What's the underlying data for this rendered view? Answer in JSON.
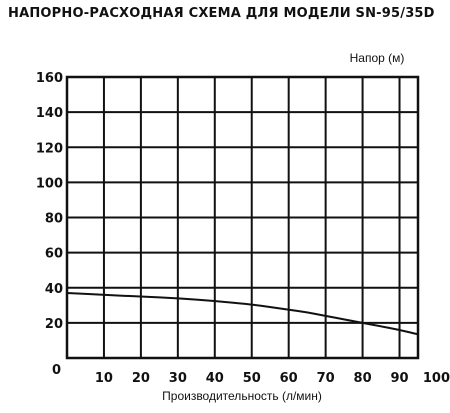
{
  "title": "НАПОРНО-РАСХОДНАЯ СХЕМА ДЛЯ МОДЕЛИ SN-95/35D",
  "chart_data": {
    "type": "line",
    "title": "НАПОРНО-РАСХОДНАЯ СХЕМА ДЛЯ МОДЕЛИ SN-95/35D",
    "xlabel": "Производительность (л/мин)",
    "ylabel": "Напор (м)",
    "xlim": [
      0,
      95
    ],
    "ylim": [
      0,
      160
    ],
    "x_ticks": [
      10,
      20,
      30,
      40,
      50,
      60,
      70,
      80,
      90,
      100
    ],
    "y_ticks": [
      20,
      40,
      60,
      80,
      100,
      120,
      140,
      160
    ],
    "origin_label": "0",
    "grid": true,
    "line_color": "#111111",
    "series": [
      {
        "x": [
          0,
          10,
          20,
          30,
          40,
          50,
          55,
          60,
          65,
          70,
          75,
          80,
          85,
          90,
          95
        ],
        "values": [
          37,
          36,
          35,
          34,
          32.5,
          30.5,
          29,
          27.5,
          26,
          24,
          22,
          20,
          18,
          16,
          13.5
        ]
      }
    ]
  }
}
